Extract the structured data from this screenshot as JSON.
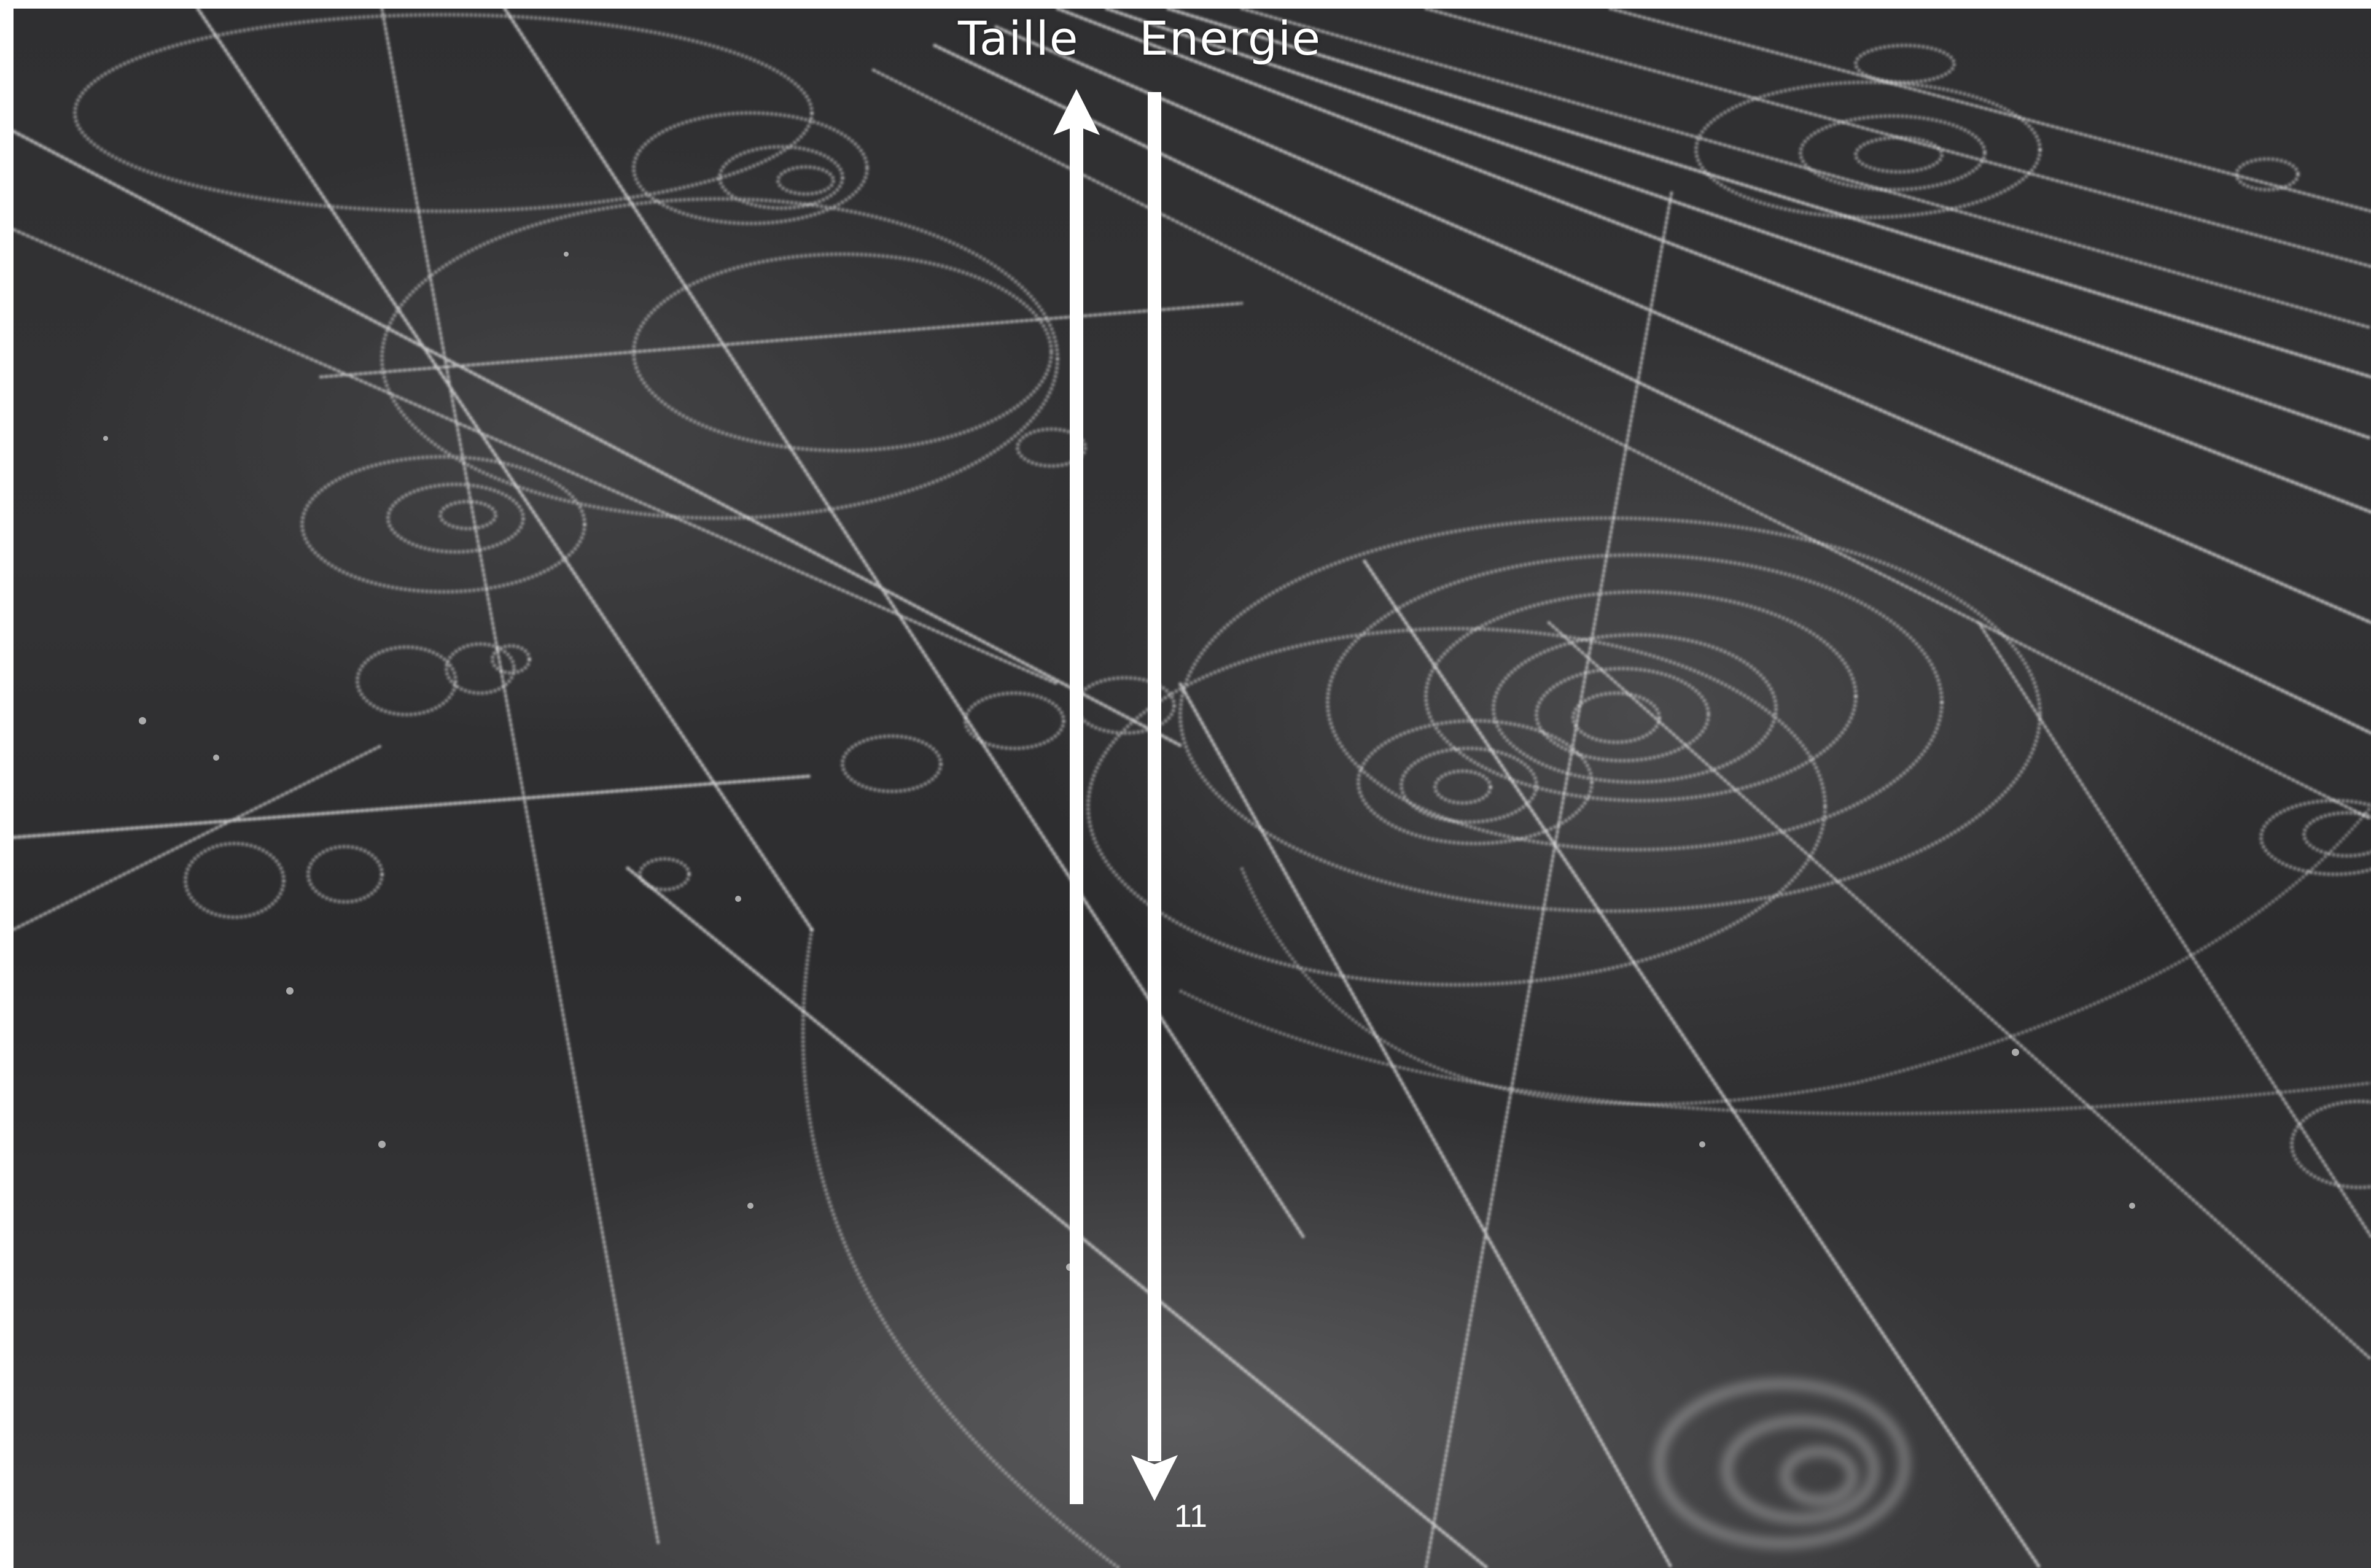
{
  "slide": {
    "taille_label": "Taille",
    "energie_label": "Energie",
    "page_number": "11"
  },
  "image": {
    "subject": "bubble-chamber-particle-tracks",
    "background_color": "#2e2e30",
    "track_color": "#e8e8e8",
    "arrow_color": "#ffffff"
  },
  "arrows": [
    {
      "name": "taille-arrow",
      "direction": "up"
    },
    {
      "name": "energie-arrow",
      "direction": "down"
    }
  ]
}
